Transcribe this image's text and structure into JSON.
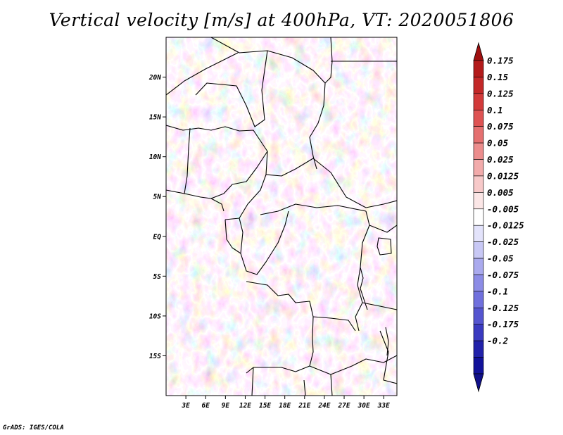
{
  "chart_data": {
    "type": "heatmap",
    "title": "Vertical velocity [m/s] at 400hPa, VT: 2020051806",
    "variable": "Vertical velocity",
    "units": "m/s",
    "level": "400hPa",
    "valid_time": "2020051806",
    "x_range": [
      0,
      35
    ],
    "y_range": [
      -20,
      25
    ],
    "x_ticks": [
      {
        "value": 3,
        "label": "3E"
      },
      {
        "value": 6,
        "label": "6E"
      },
      {
        "value": 9,
        "label": "9E"
      },
      {
        "value": 12,
        "label": "12E"
      },
      {
        "value": 15,
        "label": "15E"
      },
      {
        "value": 18,
        "label": "18E"
      },
      {
        "value": 21,
        "label": "21E"
      },
      {
        "value": 24,
        "label": "24E"
      },
      {
        "value": 27,
        "label": "27E"
      },
      {
        "value": 30,
        "label": "30E"
      },
      {
        "value": 33,
        "label": "33E"
      }
    ],
    "y_ticks": [
      {
        "value": 20,
        "label": "20N"
      },
      {
        "value": 15,
        "label": "15N"
      },
      {
        "value": 10,
        "label": "10N"
      },
      {
        "value": 5,
        "label": "5N"
      },
      {
        "value": 0,
        "label": "EQ"
      },
      {
        "value": -5,
        "label": "5S"
      },
      {
        "value": -10,
        "label": "10S"
      },
      {
        "value": -15,
        "label": "15S"
      }
    ],
    "colorbar": {
      "labels": [
        "0.175",
        "0.15",
        "0.125",
        "0.1",
        "0.075",
        "0.05",
        "0.025",
        "0.0125",
        "0.005",
        "-0.005",
        "-0.0125",
        "-0.025",
        "-0.05",
        "-0.075",
        "-0.1",
        "-0.125",
        "-0.175",
        "-0.2"
      ],
      "colors": [
        "#b31b1b",
        "#c32828",
        "#d23a3a",
        "#de5353",
        "#e57070",
        "#ec8d8d",
        "#f2abab",
        "#f7c9c9",
        "#fbe6e6",
        "#ffffff",
        "#e3e3fb",
        "#c8c8f5",
        "#aaaaee",
        "#8c8ce6",
        "#7070dd",
        "#5555d0",
        "#3a3ac0",
        "#2222aa",
        "#12129a"
      ],
      "over_color": "#a01010",
      "under_color": "#10108a"
    }
  },
  "footer": {
    "credit": "GrADS: IGES/COLA"
  }
}
